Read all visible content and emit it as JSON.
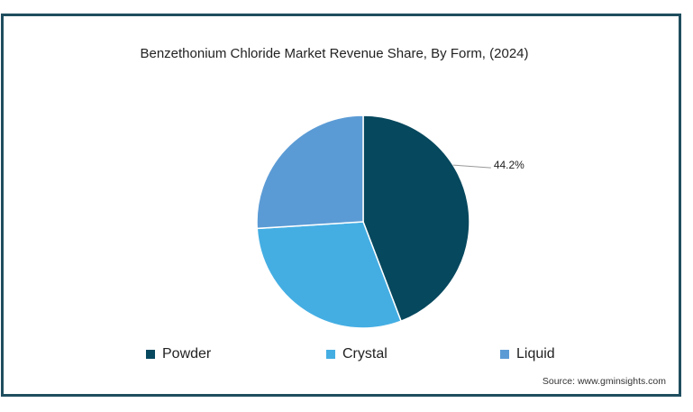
{
  "chart_data": {
    "type": "pie",
    "title": "Benzethonium Chloride Market Revenue Share, By Form, (2024)",
    "slices": [
      {
        "name": "Powder",
        "value": 44.2,
        "color": "#06485e",
        "label": "44.2%"
      },
      {
        "name": "Crystal",
        "value": 29.8,
        "color": "#44aee3"
      },
      {
        "name": "Liquid",
        "value": 26.0,
        "color": "#5b9bd5"
      }
    ],
    "legend_position": "bottom"
  },
  "source": "Source: www.gminsights.com"
}
